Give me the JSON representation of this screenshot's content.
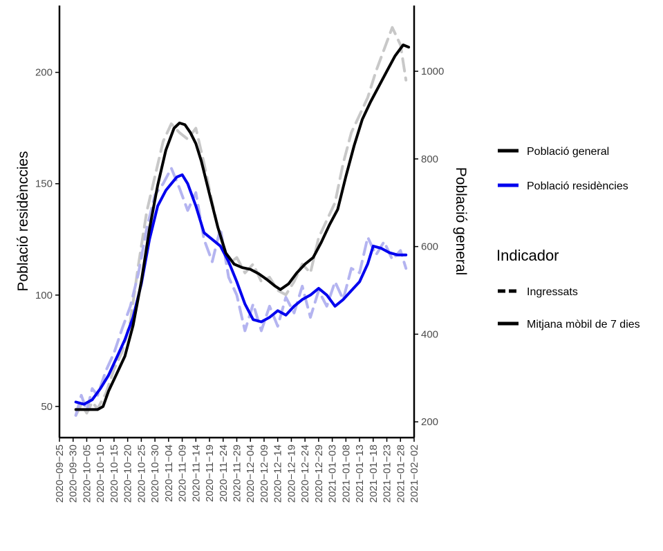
{
  "chart_data": {
    "type": "line",
    "y_left_label": "Població residènccies",
    "y_right_label": "Població general",
    "y_left_ticks": [
      50,
      100,
      150,
      200
    ],
    "y_left_range": [
      36,
      230
    ],
    "y_right_ticks": [
      200,
      400,
      600,
      800,
      1000
    ],
    "y_right_range": [
      164,
      1150
    ],
    "x_ticks": [
      "2020-09-25",
      "2020-09-30",
      "2020-10-05",
      "2020-10-10",
      "2020-10-15",
      "2020-10-20",
      "2020-10-25",
      "2020-10-30",
      "2020-11-04",
      "2020-11-09",
      "2020-11-14",
      "2020-11-19",
      "2020-11-24",
      "2020-11-29",
      "2020-12-04",
      "2020-12-09",
      "2020-12-14",
      "2020-12-19",
      "2020-12-24",
      "2020-12-29",
      "2021-01-03",
      "2021-01-08",
      "2021-01-13",
      "2021-01-18",
      "2021-01-23",
      "2021-01-28",
      "2021-02-02"
    ],
    "x_range": [
      "2020-09-25",
      "2021-02-02"
    ],
    "grid": false,
    "legend_position": "right",
    "colors": {
      "poblacio_general": "#000000",
      "poblacio_residencies": "#0000ee",
      "ingressats_general": "#c8c8c8",
      "ingressats_residencies": "#b4b4f0"
    },
    "series": [
      {
        "name": "Població general",
        "indicator": "Mitjana mòbil de 7 dies",
        "axis": "right",
        "x": [
          "2020-10-01",
          "2020-10-04",
          "2020-10-07",
          "2020-10-09",
          "2020-10-11",
          "2020-10-13",
          "2020-10-16",
          "2020-10-19",
          "2020-10-22",
          "2020-10-25",
          "2020-10-28",
          "2020-10-31",
          "2020-11-03",
          "2020-11-06",
          "2020-11-08",
          "2020-11-10",
          "2020-11-12",
          "2020-11-14",
          "2020-11-16",
          "2020-11-19",
          "2020-11-22",
          "2020-11-25",
          "2020-11-28",
          "2020-12-01",
          "2020-12-04",
          "2020-12-07",
          "2020-12-10",
          "2020-12-13",
          "2020-12-15",
          "2020-12-18",
          "2020-12-21",
          "2020-12-24",
          "2020-12-27",
          "2020-12-30",
          "2021-01-02",
          "2021-01-05",
          "2021-01-08",
          "2021-01-11",
          "2021-01-14",
          "2021-01-17",
          "2021-01-20",
          "2021-01-23",
          "2021-01-26",
          "2021-01-29",
          "2021-01-31"
        ],
        "y": [
          228,
          228,
          228,
          228,
          235,
          270,
          310,
          350,
          420,
          520,
          640,
          740,
          820,
          870,
          882,
          878,
          860,
          835,
          795,
          720,
          645,
          585,
          560,
          552,
          548,
          538,
          525,
          510,
          502,
          515,
          540,
          560,
          575,
          610,
          650,
          685,
          760,
          830,
          890,
          930,
          965,
          1000,
          1035,
          1060,
          1055
        ]
      },
      {
        "name": "Població residències",
        "indicator": "Mitjana mòbil de 7 dies",
        "axis": "left",
        "x": [
          "2020-10-01",
          "2020-10-04",
          "2020-10-07",
          "2020-10-10",
          "2020-10-13",
          "2020-10-16",
          "2020-10-19",
          "2020-10-22",
          "2020-10-25",
          "2020-10-28",
          "2020-10-31",
          "2020-11-03",
          "2020-11-05",
          "2020-11-07",
          "2020-11-09",
          "2020-11-11",
          "2020-11-14",
          "2020-11-17",
          "2020-11-20",
          "2020-11-23",
          "2020-11-26",
          "2020-11-29",
          "2020-12-02",
          "2020-12-05",
          "2020-12-08",
          "2020-12-11",
          "2020-12-14",
          "2020-12-17",
          "2020-12-20",
          "2020-12-23",
          "2020-12-26",
          "2020-12-29",
          "2021-01-01",
          "2021-01-04",
          "2021-01-07",
          "2021-01-10",
          "2021-01-13",
          "2021-01-16",
          "2021-01-18",
          "2021-01-21",
          "2021-01-24",
          "2021-01-27",
          "2021-01-30"
        ],
        "y": [
          52,
          51,
          53,
          58,
          64,
          72,
          80,
          90,
          105,
          125,
          140,
          147,
          150,
          153,
          154,
          150,
          140,
          128,
          125,
          122,
          115,
          106,
          96,
          89,
          88,
          90,
          93,
          91,
          95,
          98,
          100,
          103,
          100,
          95,
          98,
          102,
          106,
          114,
          122,
          121,
          119,
          118,
          118
        ]
      },
      {
        "name": "Població general",
        "indicator": "Ingressats",
        "axis": "right",
        "x": [
          "2020-10-01",
          "2020-10-03",
          "2020-10-05",
          "2020-10-07",
          "2020-10-09",
          "2020-10-12",
          "2020-10-15",
          "2020-10-18",
          "2020-10-21",
          "2020-10-24",
          "2020-10-27",
          "2020-10-30",
          "2020-11-02",
          "2020-11-05",
          "2020-11-08",
          "2020-11-11",
          "2020-11-14",
          "2020-11-17",
          "2020-11-20",
          "2020-11-23",
          "2020-11-26",
          "2020-11-29",
          "2020-12-02",
          "2020-12-05",
          "2020-12-08",
          "2020-12-11",
          "2020-12-14",
          "2020-12-17",
          "2020-12-20",
          "2020-12-23",
          "2020-12-26",
          "2020-12-29",
          "2021-01-01",
          "2021-01-04",
          "2021-01-07",
          "2021-01-10",
          "2021-01-13",
          "2021-01-16",
          "2021-01-19",
          "2021-01-22",
          "2021-01-25",
          "2021-01-28",
          "2021-01-30"
        ],
        "y": [
          215,
          240,
          220,
          245,
          230,
          265,
          320,
          360,
          430,
          560,
          680,
          760,
          840,
          880,
          860,
          845,
          870,
          790,
          700,
          620,
          560,
          575,
          540,
          560,
          520,
          530,
          500,
          490,
          520,
          560,
          540,
          620,
          660,
          700,
          790,
          860,
          900,
          940,
          1000,
          1050,
          1100,
          1060,
          980
        ]
      },
      {
        "name": "Població residències",
        "indicator": "Ingressats",
        "axis": "left",
        "x": [
          "2020-10-01",
          "2020-10-03",
          "2020-10-05",
          "2020-10-07",
          "2020-10-09",
          "2020-10-12",
          "2020-10-15",
          "2020-10-18",
          "2020-10-21",
          "2020-10-24",
          "2020-10-27",
          "2020-10-30",
          "2020-11-02",
          "2020-11-05",
          "2020-11-08",
          "2020-11-11",
          "2020-11-14",
          "2020-11-17",
          "2020-11-20",
          "2020-11-23",
          "2020-11-26",
          "2020-11-29",
          "2020-12-02",
          "2020-12-05",
          "2020-12-08",
          "2020-12-11",
          "2020-12-14",
          "2020-12-17",
          "2020-12-20",
          "2020-12-23",
          "2020-12-26",
          "2020-12-29",
          "2021-01-01",
          "2021-01-04",
          "2021-01-07",
          "2021-01-10",
          "2021-01-13",
          "2021-01-16",
          "2021-01-19",
          "2021-01-22",
          "2021-01-25",
          "2021-01-28",
          "2021-01-30"
        ],
        "y": [
          46,
          55,
          48,
          58,
          55,
          66,
          74,
          85,
          95,
          110,
          130,
          145,
          150,
          157,
          148,
          138,
          146,
          125,
          115,
          130,
          108,
          100,
          84,
          96,
          84,
          95,
          86,
          99,
          92,
          104,
          90,
          102,
          95,
          106,
          98,
          112,
          110,
          126,
          118,
          124,
          116,
          120,
          112
        ]
      }
    ]
  },
  "legend": {
    "items": [
      {
        "label": "Població general",
        "color": "#000000"
      },
      {
        "label": "Població residències",
        "color": "#0000ee"
      }
    ],
    "indicator_title": "Indicador",
    "indicator_items": [
      {
        "label": "Ingressats",
        "style": "dashed"
      },
      {
        "label": "Mitjana mòbil de 7 dies",
        "style": "solid"
      }
    ]
  }
}
